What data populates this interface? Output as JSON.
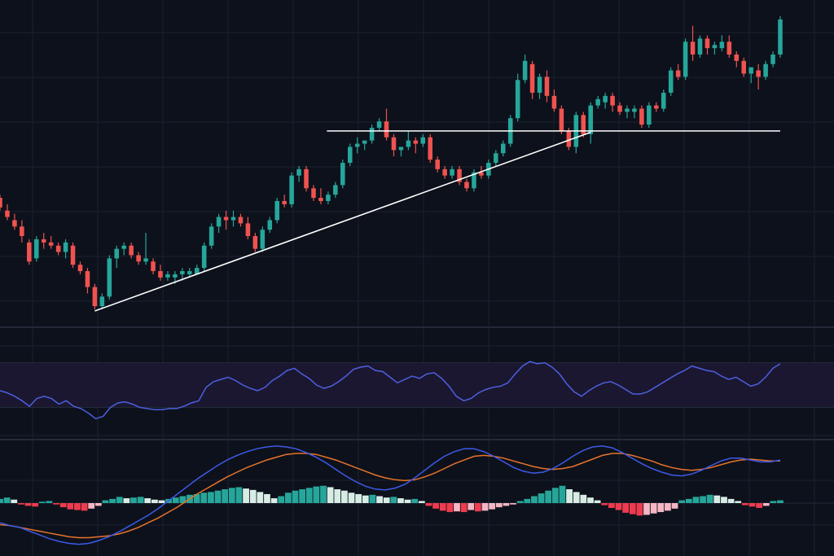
{
  "colors": {
    "background": "#0d111b",
    "grid": "#1a2130",
    "separator": "#222a38",
    "up": "#26a69a",
    "down": "#ef5350",
    "neutral": "#8f9198",
    "rsi_line": "#4c5fe0",
    "rsi_band": "#1b1730",
    "macd_line": "#3d5ae8",
    "signal_line": "#e8732a",
    "hist_up_strong": "#26a69a",
    "hist_up_weak": "#d8ece6",
    "hist_down_strong": "#ef3b4f",
    "hist_down_weak": "#f5b6c3",
    "drawing": "#ffffff"
  },
  "chart_data": [
    {
      "type": "candlestick",
      "title": "",
      "xlabel": "",
      "ylabel": "",
      "grid": true,
      "ylim": [
        0,
        100
      ],
      "ohlc": [
        [
          55,
          56,
          51,
          52
        ],
        [
          51,
          53,
          48,
          49
        ],
        [
          48,
          50,
          45,
          46
        ],
        [
          46,
          48,
          41,
          43
        ],
        [
          41,
          42,
          34,
          35
        ],
        [
          36,
          43,
          35,
          42
        ],
        [
          42,
          44,
          39,
          41
        ],
        [
          41,
          43,
          39,
          40
        ],
        [
          40,
          41,
          37,
          38
        ],
        [
          38,
          42,
          36,
          41
        ],
        [
          40,
          41,
          33,
          34
        ],
        [
          34,
          35,
          31,
          32
        ],
        [
          32,
          33,
          25,
          27
        ],
        [
          27,
          28,
          20,
          21
        ],
        [
          21,
          25,
          20,
          24
        ],
        [
          24,
          37,
          23,
          36
        ],
        [
          36,
          40,
          33,
          39
        ],
        [
          39,
          41,
          37,
          40
        ],
        [
          40,
          41,
          36,
          37
        ],
        [
          37,
          38,
          34,
          35
        ],
        [
          35,
          44,
          34,
          36
        ],
        [
          35,
          36,
          31,
          32
        ],
        [
          32,
          34,
          29,
          30
        ],
        [
          30,
          32,
          29,
          31
        ],
        [
          30,
          32,
          28,
          31
        ],
        [
          31,
          33,
          29,
          32
        ],
        [
          31,
          33,
          30,
          32
        ],
        [
          31,
          34,
          31,
          33
        ],
        [
          33,
          41,
          32,
          40
        ],
        [
          40,
          47,
          39,
          46
        ],
        [
          46,
          50,
          44,
          49
        ],
        [
          49,
          51,
          45,
          48
        ],
        [
          48,
          51,
          46,
          49
        ],
        [
          49,
          50,
          46,
          47
        ],
        [
          47,
          49,
          42,
          43
        ],
        [
          43,
          44,
          38,
          39
        ],
        [
          39,
          46,
          38,
          45
        ],
        [
          45,
          49,
          44,
          48
        ],
        [
          48,
          55,
          47,
          54
        ],
        [
          54,
          56,
          52,
          53
        ],
        [
          53,
          63,
          52,
          62
        ],
        [
          62,
          65,
          60,
          64
        ],
        [
          64,
          65,
          57,
          58
        ],
        [
          58,
          59,
          54,
          55
        ],
        [
          55,
          58,
          53,
          54
        ],
        [
          54,
          57,
          53,
          56
        ],
        [
          56,
          60,
          55,
          59
        ],
        [
          59,
          67,
          58,
          66
        ],
        [
          66,
          72,
          65,
          71
        ],
        [
          71,
          74,
          69,
          72
        ],
        [
          72,
          73,
          70,
          73
        ],
        [
          73,
          78,
          72,
          77
        ],
        [
          77,
          80,
          76,
          79
        ],
        [
          79,
          83,
          73,
          74
        ],
        [
          74,
          75,
          68,
          70
        ],
        [
          70,
          71,
          68,
          71
        ],
        [
          71,
          76,
          70,
          73
        ],
        [
          73,
          74,
          69,
          72
        ],
        [
          72,
          75,
          71,
          74
        ],
        [
          74,
          75,
          66,
          67
        ],
        [
          67,
          68,
          63,
          64
        ],
        [
          64,
          65,
          61,
          62
        ],
        [
          62,
          65,
          61,
          64
        ],
        [
          64,
          65,
          59,
          60
        ],
        [
          60,
          61,
          57,
          58
        ],
        [
          58,
          64,
          57,
          63
        ],
        [
          63,
          65,
          61,
          62
        ],
        [
          62,
          67,
          61,
          66
        ],
        [
          66,
          70,
          65,
          69
        ],
        [
          69,
          73,
          68,
          72
        ],
        [
          72,
          81,
          71,
          80
        ],
        [
          80,
          94,
          79,
          92
        ],
        [
          92,
          100,
          91,
          98
        ],
        [
          97,
          98,
          86,
          88
        ],
        [
          88,
          94,
          86,
          93
        ],
        [
          93,
          95,
          85,
          87
        ],
        [
          87,
          89,
          82,
          83
        ],
        [
          83,
          84,
          75,
          76
        ],
        [
          76,
          77,
          70,
          71
        ],
        [
          71,
          82,
          69,
          81
        ],
        [
          81,
          82,
          74,
          75
        ],
        [
          75,
          85,
          72,
          84
        ],
        [
          84,
          87,
          83,
          86
        ],
        [
          85,
          88,
          83,
          87
        ],
        [
          87,
          88,
          82,
          84
        ],
        [
          84,
          85,
          81,
          82
        ],
        [
          82,
          84,
          80,
          83
        ],
        [
          82,
          84,
          80,
          83
        ],
        [
          83,
          84,
          77,
          78
        ],
        [
          78,
          85,
          77,
          84
        ],
        [
          84,
          85,
          82,
          83
        ],
        [
          83,
          89,
          82,
          88
        ],
        [
          88,
          96,
          87,
          95
        ],
        [
          95,
          97,
          92,
          93
        ],
        [
          93,
          105,
          92,
          104
        ],
        [
          104,
          109,
          98,
          100
        ],
        [
          100,
          106,
          99,
          105
        ],
        [
          105,
          106,
          100,
          102
        ],
        [
          102,
          104,
          100,
          103
        ],
        [
          102,
          106,
          101,
          104
        ],
        [
          104,
          106,
          99,
          100
        ],
        [
          100,
          101,
          96,
          98
        ],
        [
          98,
          99,
          93,
          94
        ],
        [
          94,
          95,
          91,
          96
        ],
        [
          95,
          97,
          89,
          93
        ],
        [
          93,
          98,
          92,
          97
        ],
        [
          97,
          101,
          96,
          100
        ],
        [
          100,
          112,
          99,
          111
        ]
      ]
    },
    {
      "type": "line",
      "title": "",
      "series": [
        {
          "values": [
            45,
            43,
            40,
            36,
            31,
            38,
            40,
            38,
            33,
            36,
            31,
            29,
            25,
            20,
            22,
            30,
            34,
            35,
            33,
            30,
            29,
            28,
            28,
            29,
            29,
            31,
            34,
            36,
            48,
            53,
            55,
            57,
            54,
            50,
            47,
            45,
            48,
            54,
            58,
            63,
            65,
            60,
            56,
            50,
            47,
            49,
            53,
            58,
            64,
            66,
            67,
            63,
            62,
            57,
            52,
            55,
            58,
            56,
            60,
            61,
            56,
            49,
            40,
            36,
            38,
            43,
            46,
            48,
            49,
            52,
            60,
            67,
            71,
            69,
            70,
            66,
            60,
            51,
            44,
            40,
            45,
            49,
            52,
            53,
            50,
            46,
            42,
            42,
            44,
            48,
            52,
            56,
            60,
            63,
            67,
            65,
            63,
            62,
            58,
            55,
            57,
            53,
            49,
            51,
            57,
            65,
            69
          ]
        }
      ]
    },
    {
      "type": "line",
      "title": "",
      "series": [
        {
          "values": [
            -2.1,
            -2.4,
            -2.6,
            -3.0,
            -3.4,
            -3.8,
            -4.1,
            -4.3,
            -4.4,
            -4.3,
            -4.0,
            -3.6,
            -3.1,
            -2.5,
            -1.9,
            -1.3,
            -0.6,
            0.2,
            1.0,
            1.8,
            2.6,
            3.3,
            4.0,
            4.6,
            5.1,
            5.5,
            5.8,
            6.0,
            6.1,
            6.0,
            5.8,
            5.4,
            4.9,
            4.3,
            3.6,
            2.9,
            2.3,
            1.8,
            1.5,
            1.4,
            1.6,
            2.0,
            2.7,
            3.5,
            4.3,
            5.0,
            5.5,
            5.8,
            5.8,
            5.5,
            5.0,
            4.4,
            3.8,
            3.4,
            3.2,
            3.3,
            3.7,
            4.3,
            5.0,
            5.6,
            6.0,
            6.1,
            5.9,
            5.4,
            4.8,
            4.2,
            3.7,
            3.3,
            3.0,
            2.9,
            3.1,
            3.5,
            4.0,
            4.5,
            4.8,
            4.8,
            4.6,
            4.4,
            4.4,
            4.6
          ]
        },
        {
          "values": [
            -2.3,
            -2.4,
            -2.6,
            -2.8,
            -3.0,
            -3.2,
            -3.4,
            -3.6,
            -3.7,
            -3.7,
            -3.6,
            -3.5,
            -3.3,
            -3.0,
            -2.6,
            -2.1,
            -1.6,
            -1.0,
            -0.4,
            0.3,
            1.0,
            1.6,
            2.2,
            2.8,
            3.3,
            3.8,
            4.2,
            4.6,
            4.9,
            5.2,
            5.3,
            5.3,
            5.2,
            4.9,
            4.6,
            4.2,
            3.8,
            3.4,
            3.0,
            2.7,
            2.5,
            2.4,
            2.5,
            2.8,
            3.2,
            3.7,
            4.2,
            4.6,
            5.0,
            5.1,
            5.0,
            4.8,
            4.5,
            4.2,
            3.9,
            3.7,
            3.6,
            3.7,
            3.9,
            4.3,
            4.7,
            5.1,
            5.3,
            5.3,
            5.1,
            4.8,
            4.5,
            4.1,
            3.8,
            3.6,
            3.5,
            3.6,
            3.8,
            4.1,
            4.4,
            4.6,
            4.7,
            4.6,
            4.5,
            4.5
          ]
        }
      ]
    },
    {
      "type": "bar",
      "title": "",
      "values": [
        0.6,
        0.8,
        0.5,
        -0.2,
        -0.4,
        -0.5,
        0.2,
        0.3,
        -0.2,
        -0.6,
        -0.9,
        -1.0,
        -1.1,
        -0.8,
        -0.4,
        0.4,
        0.6,
        0.9,
        0.7,
        0.8,
        0.9,
        0.7,
        0.5,
        0.4,
        0.6,
        0.8,
        1.0,
        1.2,
        1.3,
        1.5,
        1.6,
        1.8,
        2.0,
        2.2,
        2.3,
        2.1,
        1.9,
        1.6,
        1.3,
        0.7,
        1.0,
        1.5,
        1.8,
        2.0,
        2.2,
        2.4,
        2.5,
        2.3,
        2.0,
        1.8,
        1.5,
        1.3,
        1.1,
        1.2,
        1.0,
        0.8,
        0.9,
        0.7,
        0.5,
        0.6,
        0.3,
        -0.4,
        -0.8,
        -1.1,
        -1.3,
        -1.2,
        -1.3,
        -1.0,
        -1.2,
        -1.1,
        -0.9,
        -0.6,
        -0.4,
        -0.2,
        0.3,
        0.6,
        1.0,
        1.4,
        1.8,
        2.2,
        2.5,
        2.0,
        1.6,
        1.2,
        0.8,
        0.4,
        -0.3,
        -0.7,
        -1.0,
        -1.4,
        -1.6,
        -1.8,
        -1.7,
        -1.5,
        -1.3,
        -1.1,
        -0.8,
        0.4,
        0.6,
        0.9,
        1.0,
        1.2,
        1.1,
        0.9,
        0.6,
        0.3,
        -0.3,
        -0.5,
        -0.7,
        -0.4,
        0.3,
        0.4
      ]
    }
  ]
}
